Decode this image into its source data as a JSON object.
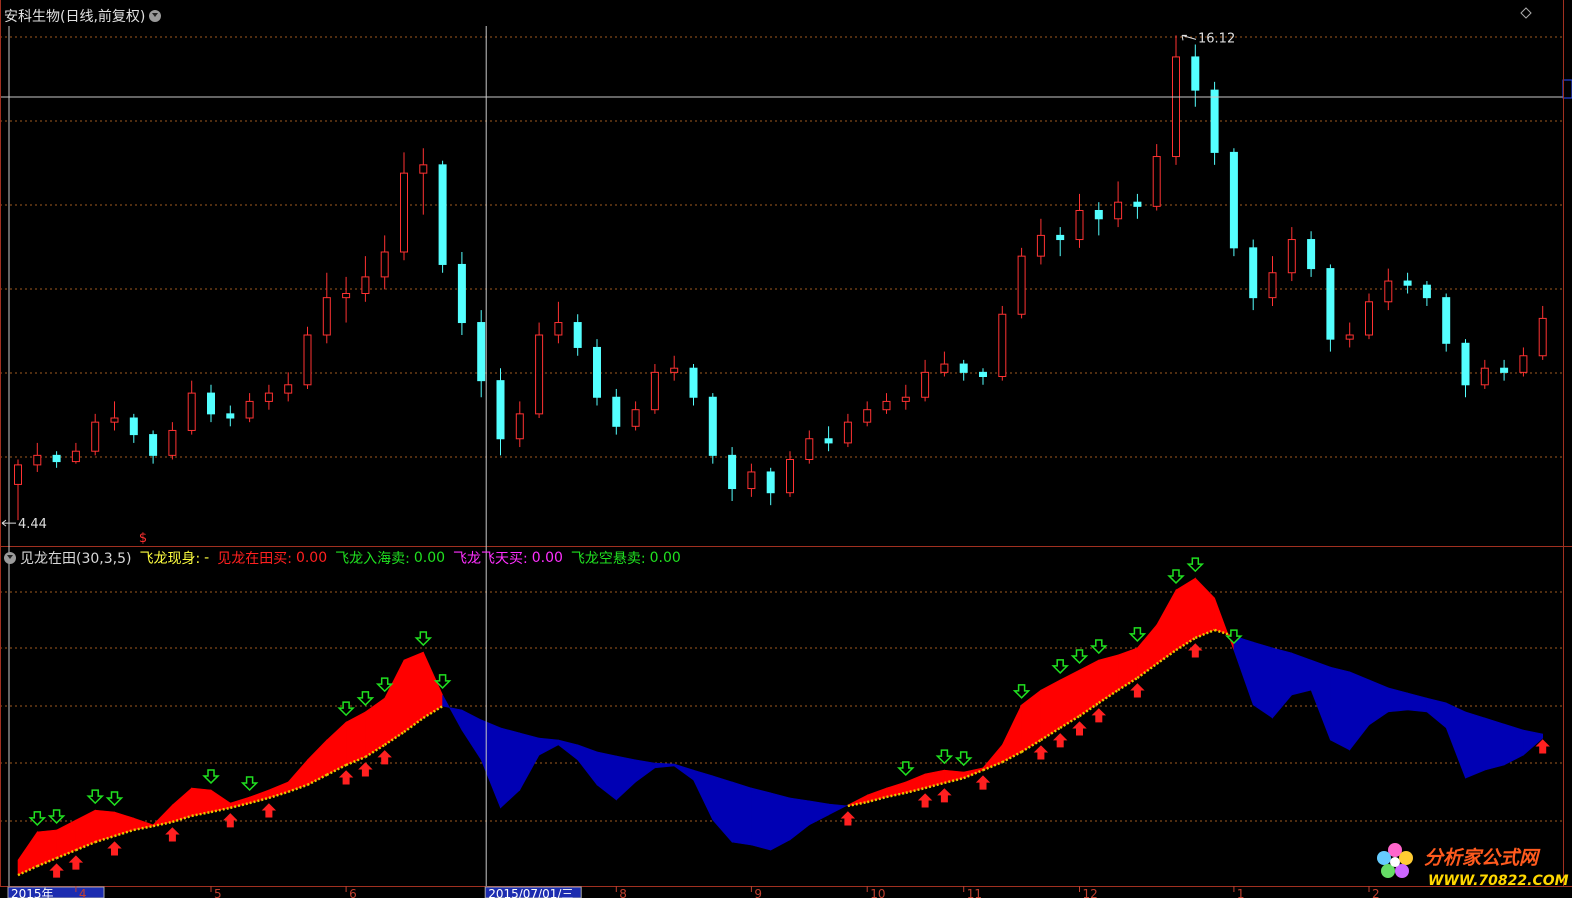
{
  "header": {
    "title": "安科生物(日线,前复权)"
  },
  "chart_data": [
    {
      "type": "candlestick",
      "categories": [
        "2015年",
        null,
        null,
        "4",
        null,
        null,
        null,
        null,
        null,
        null,
        "5",
        null,
        null,
        null,
        null,
        null,
        null,
        "6",
        null,
        null,
        null,
        null,
        null,
        null,
        "2015/07/01/三",
        null,
        null,
        null,
        null,
        null,
        null,
        "8",
        null,
        null,
        null,
        null,
        null,
        null,
        "9",
        null,
        null,
        null,
        null,
        null,
        "10",
        null,
        null,
        null,
        null,
        "11",
        null,
        null,
        null,
        null,
        null,
        "12",
        null,
        null,
        null,
        null,
        null,
        null,
        null,
        "1",
        null,
        null,
        null,
        null,
        null,
        null,
        "2",
        null,
        null,
        null,
        null,
        null,
        null,
        null,
        null,
        null
      ],
      "candles": [
        [
          5.3,
          5.9,
          4.44,
          5.77
        ],
        [
          5.77,
          6.3,
          5.6,
          6.0
        ],
        [
          6.0,
          6.1,
          5.7,
          5.85
        ],
        [
          5.85,
          6.3,
          5.8,
          6.1
        ],
        [
          6.1,
          7.0,
          6.0,
          6.8
        ],
        [
          6.8,
          7.3,
          6.6,
          6.9
        ],
        [
          6.9,
          7.0,
          6.3,
          6.5
        ],
        [
          6.5,
          6.6,
          5.8,
          6.0
        ],
        [
          6.0,
          6.8,
          5.9,
          6.6
        ],
        [
          6.6,
          7.8,
          6.5,
          7.5
        ],
        [
          7.5,
          7.7,
          6.8,
          7.0
        ],
        [
          7.0,
          7.2,
          6.7,
          6.9
        ],
        [
          6.9,
          7.5,
          6.8,
          7.3
        ],
        [
          7.3,
          7.7,
          7.1,
          7.5
        ],
        [
          7.5,
          8.0,
          7.3,
          7.7
        ],
        [
          7.7,
          9.1,
          7.6,
          8.9
        ],
        [
          8.9,
          10.4,
          8.7,
          9.8
        ],
        [
          9.8,
          10.3,
          9.2,
          9.9
        ],
        [
          9.9,
          10.8,
          9.7,
          10.3
        ],
        [
          10.3,
          11.3,
          10.0,
          10.9
        ],
        [
          10.9,
          13.3,
          10.7,
          12.8
        ],
        [
          12.8,
          13.4,
          11.8,
          13.0
        ],
        [
          13.0,
          13.1,
          10.4,
          10.6
        ],
        [
          10.6,
          10.9,
          8.9,
          9.2
        ],
        [
          9.2,
          9.5,
          7.4,
          7.8
        ],
        [
          7.8,
          8.1,
          6.0,
          6.4
        ],
        [
          6.4,
          7.3,
          6.2,
          7.0
        ],
        [
          7.0,
          9.2,
          6.9,
          8.9
        ],
        [
          8.9,
          9.7,
          8.7,
          9.2
        ],
        [
          9.2,
          9.4,
          8.4,
          8.6
        ],
        [
          8.6,
          8.8,
          7.2,
          7.4
        ],
        [
          7.4,
          7.6,
          6.5,
          6.7
        ],
        [
          6.7,
          7.3,
          6.6,
          7.1
        ],
        [
          7.1,
          8.2,
          7.0,
          8.0
        ],
        [
          8.0,
          8.4,
          7.8,
          8.1
        ],
        [
          8.1,
          8.2,
          7.2,
          7.4
        ],
        [
          7.4,
          7.5,
          5.8,
          6.0
        ],
        [
          6.0,
          6.2,
          4.9,
          5.2
        ],
        [
          5.2,
          5.8,
          5.0,
          5.6
        ],
        [
          5.6,
          5.7,
          4.8,
          5.1
        ],
        [
          5.1,
          6.1,
          5.0,
          5.9
        ],
        [
          5.9,
          6.6,
          5.8,
          6.4
        ],
        [
          6.4,
          6.7,
          6.1,
          6.3
        ],
        [
          6.3,
          7.0,
          6.2,
          6.8
        ],
        [
          6.8,
          7.3,
          6.7,
          7.1
        ],
        [
          7.1,
          7.5,
          7.0,
          7.3
        ],
        [
          7.3,
          7.7,
          7.1,
          7.4
        ],
        [
          7.4,
          8.3,
          7.3,
          8.0
        ],
        [
          8.0,
          8.5,
          7.9,
          8.2
        ],
        [
          8.2,
          8.3,
          7.8,
          8.0
        ],
        [
          8.0,
          8.1,
          7.7,
          7.9
        ],
        [
          7.9,
          9.6,
          7.8,
          9.4
        ],
        [
          9.4,
          11.0,
          9.3,
          10.8
        ],
        [
          10.8,
          11.7,
          10.6,
          11.3
        ],
        [
          11.3,
          11.5,
          10.8,
          11.2
        ],
        [
          11.2,
          12.3,
          11.0,
          11.9
        ],
        [
          11.9,
          12.1,
          11.3,
          11.7
        ],
        [
          11.7,
          12.6,
          11.5,
          12.1
        ],
        [
          12.1,
          12.3,
          11.7,
          12.0
        ],
        [
          12.0,
          13.5,
          11.9,
          13.2
        ],
        [
          13.2,
          16.12,
          13.0,
          15.6
        ],
        [
          15.6,
          15.9,
          14.4,
          14.8
        ],
        [
          14.8,
          15.0,
          13.0,
          13.3
        ],
        [
          13.3,
          13.4,
          10.8,
          11.0
        ],
        [
          11.0,
          11.2,
          9.5,
          9.8
        ],
        [
          9.8,
          10.8,
          9.6,
          10.4
        ],
        [
          10.4,
          11.5,
          10.2,
          11.2
        ],
        [
          11.2,
          11.4,
          10.3,
          10.5
        ],
        [
          10.5,
          10.6,
          8.5,
          8.8
        ],
        [
          8.8,
          9.2,
          8.6,
          8.9
        ],
        [
          8.9,
          9.9,
          8.8,
          9.7
        ],
        [
          9.7,
          10.5,
          9.5,
          10.2
        ],
        [
          10.2,
          10.4,
          9.9,
          10.1
        ],
        [
          10.1,
          10.2,
          9.6,
          9.8
        ],
        [
          9.8,
          9.9,
          8.5,
          8.7
        ],
        [
          8.7,
          8.8,
          7.4,
          7.7
        ],
        [
          7.7,
          8.3,
          7.6,
          8.1
        ],
        [
          8.1,
          8.3,
          7.8,
          8.0
        ],
        [
          8.0,
          8.6,
          7.9,
          8.4
        ],
        [
          8.4,
          9.6,
          8.3,
          9.3
        ]
      ],
      "ylim": [
        3.84,
        16.49
      ],
      "high_label": 16.12,
      "low_label": 4.44,
      "up_color": "#ff3232",
      "down_color": "#54ffff",
      "signal_text": "$"
    },
    {
      "type": "indicator",
      "title": "见龙在田(30,3,5)",
      "legend": [
        {
          "name": "飞龙现身:",
          "label": "-",
          "color": "#ffff40"
        },
        {
          "name": "见龙在田买:",
          "label": "0.00",
          "color": "#ff2020"
        },
        {
          "name": "飞龙入海卖:",
          "label": "0.00",
          "color": "#20e020"
        },
        {
          "name": "飞龙飞天买:",
          "label": "0.00",
          "color": "#ff30ff"
        },
        {
          "name": "飞龙空悬卖:",
          "label": "0.00",
          "color": "#20e020"
        }
      ],
      "fast": [
        7.8,
        16.6,
        17.2,
        20.3,
        23.4,
        22.8,
        20.9,
        18.8,
        25.0,
        30.3,
        29.7,
        25.6,
        27.5,
        29.7,
        32.2,
        39.1,
        45.3,
        50.9,
        54.1,
        58.4,
        70.3,
        72.8,
        59.4,
        48.4,
        39.1,
        24.1,
        29.7,
        40.6,
        43.8,
        39.1,
        31.3,
        26.6,
        32.2,
        36.6,
        37.2,
        32.8,
        20.3,
        13.4,
        12.5,
        10.9,
        14.1,
        18.8,
        21.9,
        25.0,
        28.1,
        30.3,
        32.2,
        34.7,
        35.9,
        35.3,
        36.6,
        43.8,
        56.3,
        60.9,
        64.1,
        67.2,
        70.3,
        71.9,
        74.1,
        81.3,
        92.2,
        95.9,
        89.7,
        73.4,
        56.3,
        52.2,
        59.4,
        60.9,
        45.3,
        42.2,
        50.0,
        54.1,
        54.7,
        54.1,
        49.1,
        33.4,
        35.9,
        37.5,
        40.6,
        45.9
      ],
      "slow": [
        3.1,
        5.9,
        8.4,
        10.9,
        13.4,
        15.3,
        17.2,
        18.4,
        19.7,
        21.6,
        22.8,
        24.1,
        25.6,
        27.2,
        29.1,
        31.3,
        34.4,
        37.5,
        40.0,
        43.8,
        47.8,
        52.2,
        55.9,
        54.7,
        51.6,
        49.1,
        47.5,
        45.9,
        45.3,
        43.8,
        41.6,
        40.3,
        39.1,
        38.1,
        37.8,
        35.9,
        34.1,
        32.2,
        30.3,
        28.8,
        27.2,
        26.3,
        25.3,
        24.7,
        25.9,
        27.5,
        28.8,
        30.3,
        31.9,
        33.4,
        35.9,
        38.4,
        41.6,
        45.3,
        49.1,
        52.8,
        56.9,
        60.9,
        64.7,
        69.1,
        73.4,
        77.2,
        79.7,
        77.8,
        75.9,
        74.1,
        72.5,
        70.3,
        68.1,
        66.6,
        64.1,
        61.6,
        60.0,
        58.4,
        56.9,
        54.1,
        52.2,
        50.3,
        48.4,
        47.2
      ],
      "ylim": [
        0,
        100
      ],
      "rise_color": "#ff0000",
      "fall_color": "#0000b4",
      "line_color": "#e8c800",
      "sell_at": [
        1,
        2,
        4,
        5,
        10,
        12,
        17,
        18,
        19,
        21,
        22,
        46,
        48,
        49,
        52,
        54,
        55,
        56,
        58,
        60,
        61,
        63
      ],
      "buy_at": [
        2,
        3,
        5,
        8,
        11,
        13,
        17,
        18,
        19,
        43,
        47,
        48,
        50,
        53,
        54,
        55,
        56,
        58,
        61,
        79
      ]
    }
  ],
  "logo": {
    "name": "分析家公式网",
    "url": "WWW.70822.COM"
  }
}
